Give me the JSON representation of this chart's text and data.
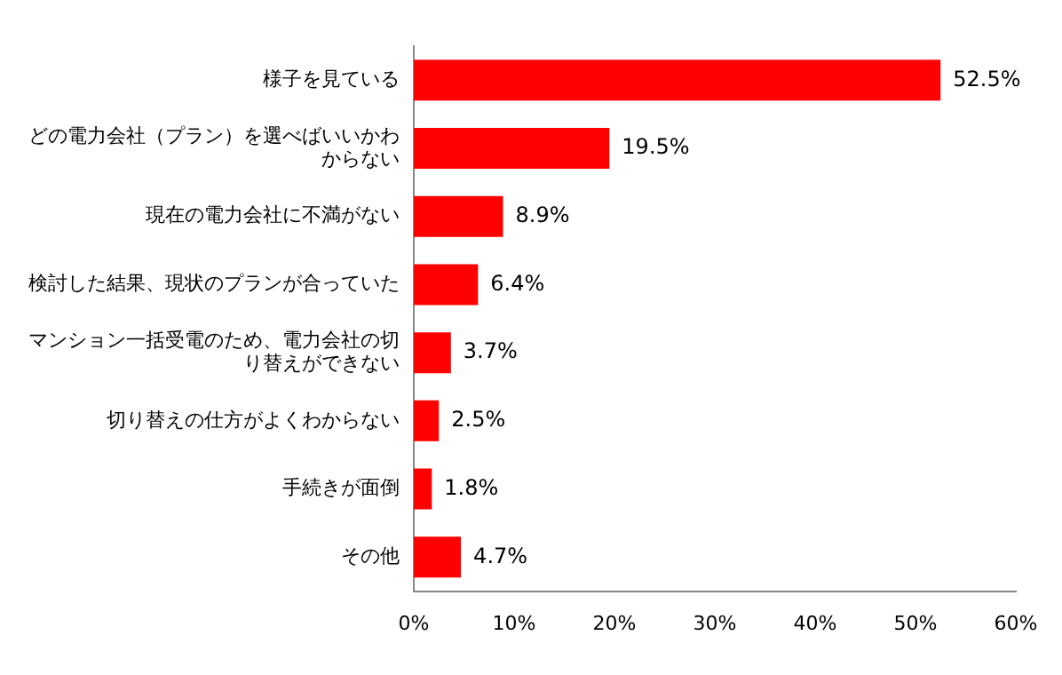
{
  "chart_data": {
    "type": "bar",
    "orientation": "horizontal",
    "categories": [
      "様子を見ている",
      "どの電力会社（プラン）を選べばいいかわからない",
      "現在の電力会社に不満がない",
      "検討した結果、現状のプランが合っていた",
      "マンション一括受電のため、電力会社の切り替えができない",
      "切り替えの仕方がよくわからない",
      "手続きが面倒",
      "その他"
    ],
    "values": [
      52.5,
      19.5,
      8.9,
      6.4,
      3.7,
      2.5,
      1.8,
      4.7
    ],
    "value_labels": [
      "52.5%",
      "19.5%",
      "8.9%",
      "6.4%",
      "3.7%",
      "2.5%",
      "1.8%",
      "4.7%"
    ],
    "color": "#ff0000",
    "xlim": [
      0,
      60
    ],
    "xticks": [
      {
        "value": 0,
        "label": "0%"
      },
      {
        "value": 10,
        "label": "10%"
      },
      {
        "value": 20,
        "label": "20%"
      },
      {
        "value": 30,
        "label": "30%"
      },
      {
        "value": 40,
        "label": "40%"
      },
      {
        "value": 50,
        "label": "50%"
      },
      {
        "value": 60,
        "label": "60%"
      }
    ],
    "grid": false,
    "legend": false
  }
}
